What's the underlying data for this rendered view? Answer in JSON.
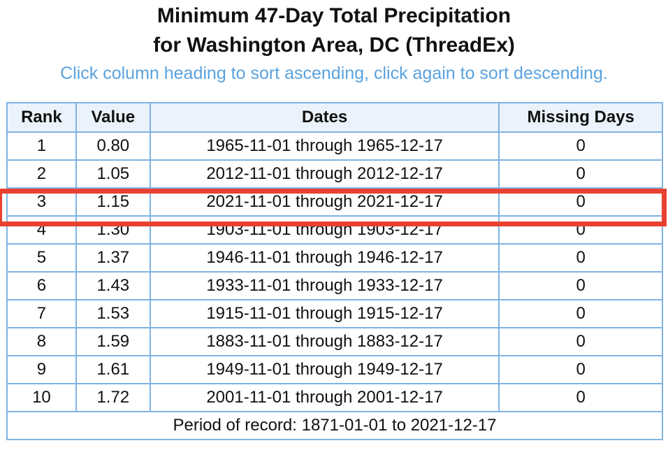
{
  "page": {
    "title_line1": "Minimum 47-Day Total Precipitation",
    "title_line2": "for Washington Area, DC (ThreadEx)",
    "hint": "Click column heading to sort ascending, click again to sort descending."
  },
  "table": {
    "headers": [
      "Rank",
      "Value",
      "Dates",
      "Missing Days"
    ],
    "rows": [
      {
        "rank": "1",
        "value": "0.80",
        "dates": "1965-11-01 through 1965-12-17",
        "missing": "0"
      },
      {
        "rank": "2",
        "value": "1.05",
        "dates": "2012-11-01 through 2012-12-17",
        "missing": "0"
      },
      {
        "rank": "3",
        "value": "1.15",
        "dates": "2021-11-01 through 2021-12-17",
        "missing": "0"
      },
      {
        "rank": "4",
        "value": "1.30",
        "dates": "1903-11-01 through 1903-12-17",
        "missing": "0"
      },
      {
        "rank": "5",
        "value": "1.37",
        "dates": "1946-11-01 through 1946-12-17",
        "missing": "0"
      },
      {
        "rank": "6",
        "value": "1.43",
        "dates": "1933-11-01 through 1933-12-17",
        "missing": "0"
      },
      {
        "rank": "7",
        "value": "1.53",
        "dates": "1915-11-01 through 1915-12-17",
        "missing": "0"
      },
      {
        "rank": "8",
        "value": "1.59",
        "dates": "1883-11-01 through 1883-12-17",
        "missing": "0"
      },
      {
        "rank": "9",
        "value": "1.61",
        "dates": "1949-11-01 through 1949-12-17",
        "missing": "0"
      },
      {
        "rank": "10",
        "value": "1.72",
        "dates": "2001-11-01 through 2001-12-17",
        "missing": "0"
      }
    ],
    "footer": "Period of record: 1871-01-01 to 2021-12-17"
  },
  "highlight": {
    "row_rank": "3",
    "color": "#e8412f"
  },
  "colors": {
    "hint": "#5aa3e0",
    "border": "#7fb3e3",
    "header_bg": "#eaf3fb"
  }
}
